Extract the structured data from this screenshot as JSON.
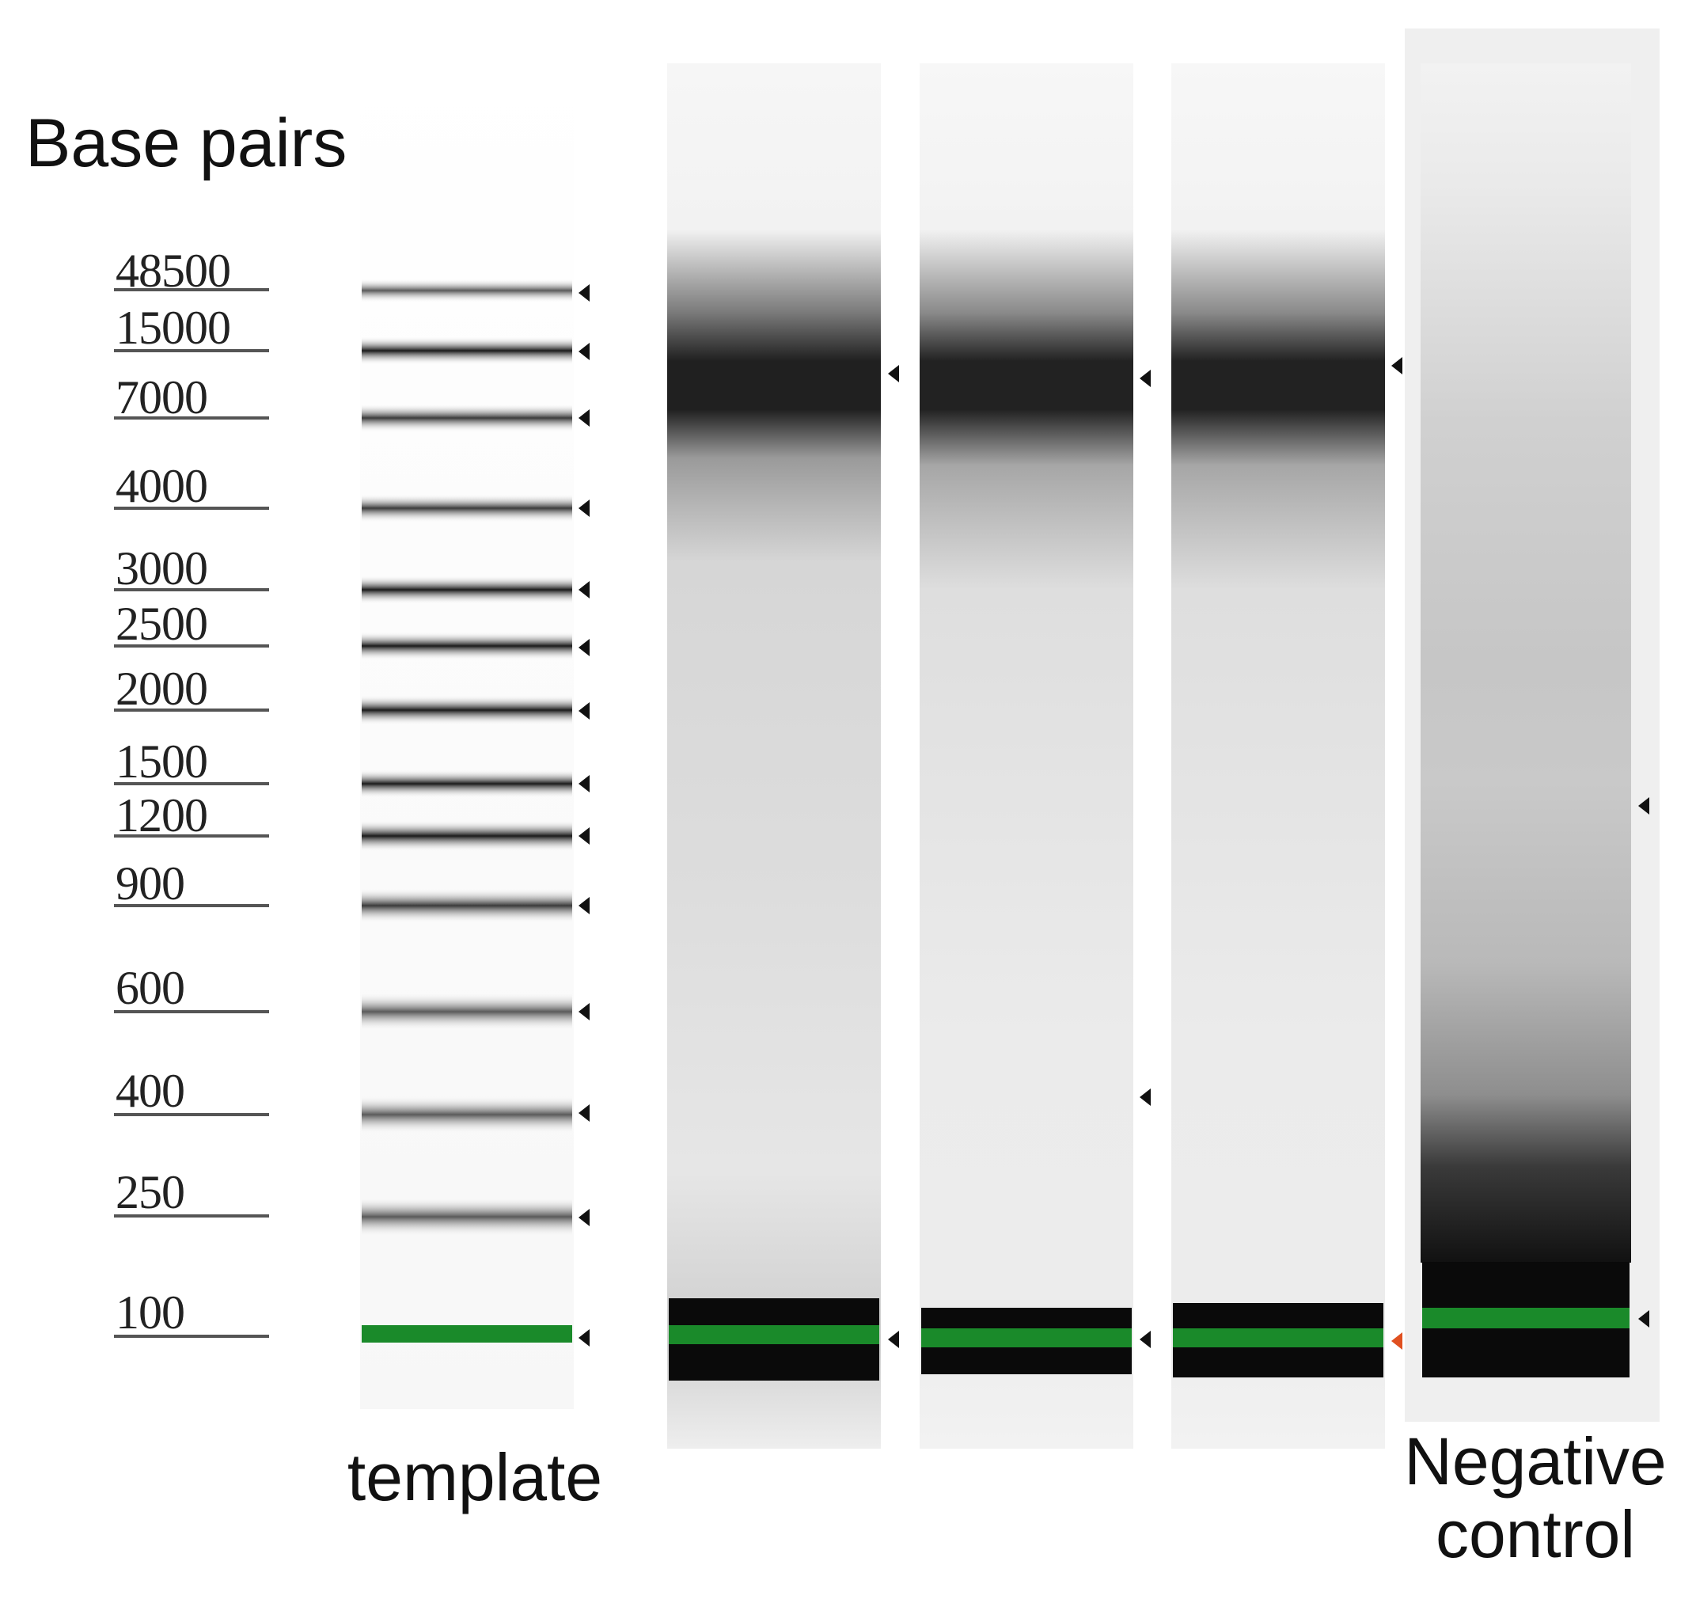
{
  "axis_title": "Base pairs",
  "ladder": {
    "labels": [
      "48500",
      "15000",
      "7000",
      "4000",
      "3000",
      "2500",
      "2000",
      "1500",
      "1200",
      "900",
      "600",
      "400",
      "250",
      "100"
    ]
  },
  "lanes": [
    {
      "label": "template"
    },
    {
      "label": ""
    },
    {
      "label": ""
    },
    {
      "label": ""
    },
    {
      "label": "Negative\ncontrol"
    }
  ],
  "colors": {
    "marker_band": "#1a8a2a",
    "marker_arrow": "#111111",
    "highlight_arrow": "#e05020",
    "tick_line": "#555555"
  }
}
